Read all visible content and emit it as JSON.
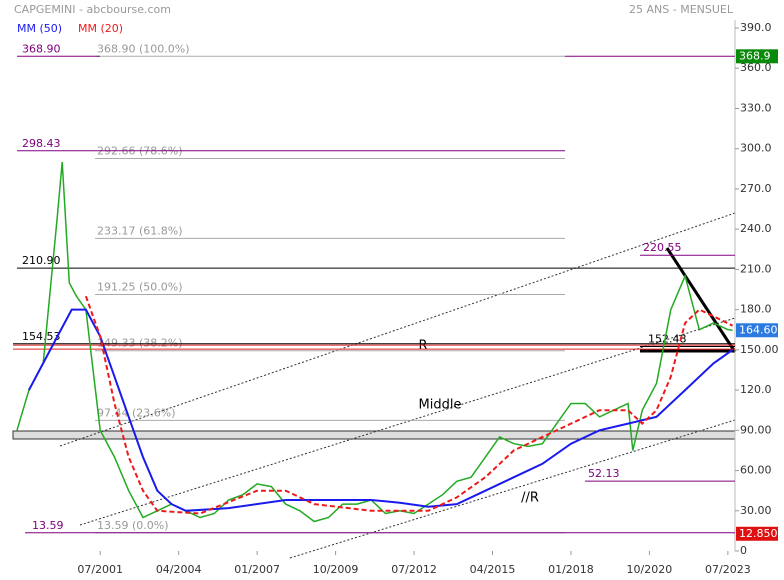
{
  "chart_data": {
    "type": "line",
    "title": "CAPGEMINI - abcbourse.com",
    "subtitle": "25 ANS - MENSUEL",
    "xlim": [
      "08/1998",
      "10/2023"
    ],
    "xticks": [
      "07/2001",
      "04/2004",
      "01/2007",
      "10/2009",
      "07/2012",
      "04/2015",
      "01/2018",
      "10/2020",
      "07/2023"
    ],
    "ylim": [
      0,
      390
    ],
    "yticks": [
      0,
      {
        "value": 30,
        "label": "30.00"
      },
      {
        "value": 60,
        "label": "60.00"
      },
      {
        "value": 90,
        "label": "90.00"
      },
      {
        "value": 120,
        "label": "120.0"
      },
      {
        "value": 150,
        "label": "150.00"
      },
      {
        "value": 180,
        "label": "180.0"
      },
      {
        "value": 210,
        "label": "210.0"
      },
      {
        "value": 240,
        "label": "240.0"
      },
      {
        "value": 270,
        "label": "270.0"
      },
      {
        "value": 300,
        "label": "300.0"
      },
      {
        "value": 330,
        "label": "330.0"
      },
      {
        "value": 360,
        "label": "360.0"
      },
      {
        "value": 390,
        "label": "390.0"
      }
    ],
    "series": [
      {
        "color": "#22aa22",
        "x": [
          "08/1998",
          "01/1999",
          "07/1999",
          "01/2000",
          "03/2000",
          "06/2000",
          "09/2000",
          "01/2001",
          "07/2001",
          "01/2002",
          "07/2002",
          "01/2003",
          "07/2003",
          "01/2004",
          "07/2004",
          "01/2005",
          "07/2005",
          "01/2006",
          "07/2006",
          "01/2007",
          "07/2007",
          "01/2008",
          "07/2008",
          "01/2009",
          "07/2009",
          "01/2010",
          "07/2010",
          "01/2011",
          "07/2011",
          "01/2012",
          "07/2012",
          "01/2013",
          "07/2013",
          "01/2014",
          "07/2014",
          "01/2015",
          "07/2015",
          "01/2016",
          "07/2016",
          "01/2017",
          "07/2017",
          "01/2018",
          "07/2018",
          "01/2019",
          "07/2019",
          "01/2020",
          "03/2020",
          "07/2020",
          "01/2021",
          "07/2021",
          "01/2022",
          "07/2022",
          "01/2023",
          "07/2023",
          "09/2023"
        ],
        "values": [
          90,
          120,
          140,
          250,
          290,
          200,
          190,
          180,
          90,
          70,
          45,
          25,
          30,
          35,
          30,
          25,
          28,
          38,
          42,
          50,
          48,
          35,
          30,
          22,
          25,
          35,
          35,
          38,
          28,
          30,
          28,
          35,
          42,
          52,
          55,
          70,
          85,
          80,
          78,
          80,
          95,
          110,
          110,
          100,
          105,
          110,
          75,
          105,
          125,
          180,
          205,
          165,
          170,
          165,
          164.6
        ]
      },
      {
        "name": "MM (50)",
        "color": "#1a1aee",
        "x": [
          "01/1999",
          "01/2000",
          "07/2000",
          "01/2001",
          "07/2001",
          "01/2002",
          "07/2002",
          "01/2003",
          "07/2003",
          "01/2004",
          "07/2004",
          "01/2006",
          "01/2008",
          "01/2011",
          "01/2012",
          "01/2013",
          "01/2014",
          "01/2015",
          "01/2016",
          "01/2017",
          "01/2018",
          "01/2019",
          "01/2020",
          "01/2021",
          "01/2022",
          "01/2023",
          "09/2023"
        ],
        "values": [
          120,
          160,
          180,
          180,
          160,
          130,
          100,
          70,
          45,
          35,
          30,
          32,
          38,
          38,
          36,
          33,
          35,
          45,
          55,
          65,
          80,
          90,
          95,
          100,
          120,
          140,
          150
        ]
      },
      {
        "name": "MM (20)",
        "color": "#ee1a1a",
        "dashed": true,
        "x": [
          "01/2001",
          "07/2001",
          "01/2002",
          "07/2002",
          "01/2003",
          "07/2003",
          "01/2005",
          "01/2007",
          "01/2008",
          "01/2009",
          "01/2011",
          "01/2013",
          "01/2014",
          "01/2015",
          "01/2016",
          "01/2018",
          "01/2019",
          "01/2020",
          "07/2020",
          "01/2021",
          "07/2021",
          "01/2022",
          "07/2022",
          "01/2023",
          "09/2023"
        ],
        "values": [
          190,
          160,
          110,
          70,
          45,
          30,
          28,
          45,
          45,
          35,
          30,
          30,
          40,
          55,
          75,
          95,
          105,
          105,
          95,
          105,
          130,
          170,
          180,
          175,
          168
        ]
      }
    ],
    "levels": [
      {
        "value": 368.9,
        "label": "368.90",
        "color": "#800080"
      },
      {
        "value": 298.43,
        "label": "298.43",
        "color": "#800080"
      },
      {
        "value": 220.55,
        "label": "220.55",
        "color": "#800080"
      },
      {
        "value": 210.9,
        "label": "210.90",
        "color": "#000000"
      },
      {
        "value": 154.53,
        "label": "154.53",
        "color": "#000000"
      },
      {
        "value": 152.48,
        "label": "152.48",
        "color": "#000000"
      },
      {
        "value": 52.13,
        "label": "52.13",
        "color": "#800080"
      },
      {
        "value": 13.59,
        "label": "13.59",
        "color": "#800080"
      }
    ],
    "fib_levels": [
      {
        "value": 368.9,
        "label": "368.90 (100.0%)"
      },
      {
        "value": 292.66,
        "label": "292.66 (78.6%)"
      },
      {
        "value": 233.17,
        "label": "233.17 (61.8%)"
      },
      {
        "value": 191.25,
        "label": "191.25 (50.0%)"
      },
      {
        "value": 149.33,
        "label": "149.33 (38.2%)"
      },
      {
        "value": 97.44,
        "label": "97.44 (23.6%)"
      },
      {
        "value": 13.59,
        "label": "13.59 (0.0%)"
      }
    ],
    "price_tags": [
      {
        "value": 368.9,
        "label": "368.9",
        "color": "#0a8a0a"
      },
      {
        "value": 164.6,
        "label": "164.60",
        "color": "#2a7ae0"
      },
      {
        "value": 12.85,
        "label": "12.850",
        "color": "#e01010"
      }
    ],
    "annotations": [
      "R",
      "Middle",
      "//R"
    ]
  }
}
